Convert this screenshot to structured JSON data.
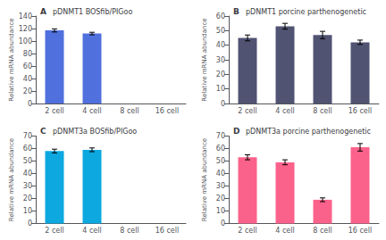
{
  "chart_data": [
    {
      "type": "bar",
      "annotations": [
        "A"
      ],
      "title": "pDNMT1 BOSfib/PIGoo",
      "ylabel": "Relative mRNA abundance",
      "categories": [
        "2 cell",
        "4 cell",
        "8 cell",
        "16 cell"
      ],
      "values": [
        117,
        112,
        null,
        null
      ],
      "errors": [
        2.5,
        2.0,
        null,
        null
      ],
      "ylim": [
        0,
        140
      ],
      "yticks": [
        0,
        20,
        40,
        60,
        80,
        100,
        120,
        140
      ],
      "grid": false
    },
    {
      "type": "bar",
      "annotations": [
        "B"
      ],
      "title": "pDNMT1 porcine parthenogenetic",
      "ylabel": "Relative mRNA abundance",
      "categories": [
        "2 cell",
        "4 cell",
        "8 cell",
        "16 cell"
      ],
      "values": [
        45,
        53,
        47,
        42
      ],
      "errors": [
        2.0,
        2.0,
        2.5,
        1.5
      ],
      "ylim": [
        0,
        60
      ],
      "yticks": [
        0,
        10,
        20,
        30,
        40,
        50,
        60
      ],
      "grid": false
    },
    {
      "type": "bar",
      "annotations": [
        "C"
      ],
      "title": "pDNMT3a BOSfib/PIGoo",
      "ylabel": "Relative mRNA abundance",
      "categories": [
        "2 cell",
        "4 cell",
        "8 cell",
        "16 cell"
      ],
      "values": [
        58,
        59,
        null,
        null
      ],
      "errors": [
        1.5,
        1.5,
        null,
        null
      ],
      "ylim": [
        0,
        70
      ],
      "yticks": [
        0,
        10,
        20,
        30,
        40,
        50,
        60,
        70
      ],
      "grid": false
    },
    {
      "type": "bar",
      "annotations": [
        "D"
      ],
      "title": "pDNMT3a porcine parthenogenetic",
      "ylabel": "Relative mRNA abundance",
      "categories": [
        "2 cell",
        "4 cell",
        "8 cell",
        "16 cell"
      ],
      "values": [
        53,
        49,
        19,
        61
      ],
      "errors": [
        2.0,
        2.0,
        1.5,
        3.0
      ],
      "ylim": [
        0,
        70
      ],
      "yticks": [
        0,
        10,
        20,
        30,
        40,
        50,
        60,
        70
      ],
      "grid": false
    }
  ]
}
